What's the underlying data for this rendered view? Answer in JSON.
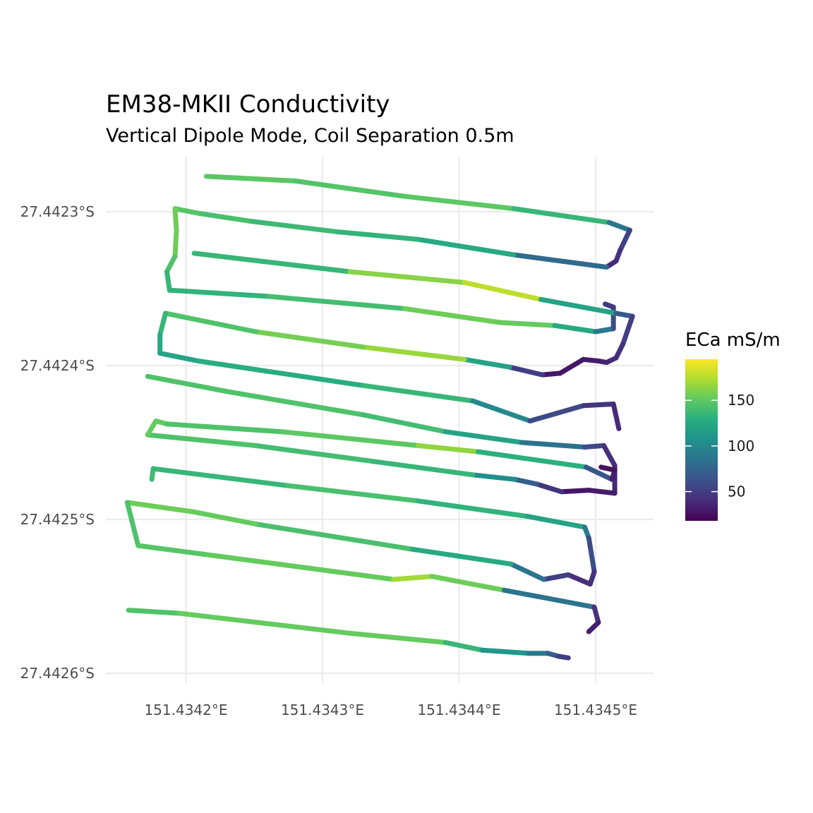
{
  "chart_data": {
    "type": "line",
    "title": "EM38-MKII Conductivity",
    "subtitle": "Vertical Dipole Mode, Coil Separation 0.5m",
    "xlabel": "",
    "ylabel": "",
    "x_ticks": [
      {
        "value": 151.4342,
        "label": "151.4342°E"
      },
      {
        "value": 151.4343,
        "label": "151.4343°E"
      },
      {
        "value": 151.4344,
        "label": "151.4344°E"
      },
      {
        "value": 151.4345,
        "label": "151.4345°E"
      }
    ],
    "y_ticks": [
      {
        "value": -27.4423,
        "label": "27.4423°S"
      },
      {
        "value": -27.4424,
        "label": "27.4424°S"
      },
      {
        "value": -27.4425,
        "label": "27.4425°S"
      },
      {
        "value": -27.4426,
        "label": "27.4426°S"
      }
    ],
    "xlim": [
      151.43414,
      151.43454
    ],
    "ylim": [
      -27.442605,
      -27.442265
    ],
    "grid": true,
    "legend": {
      "title": "ECa mS/m",
      "position": "right",
      "range": [
        18,
        195
      ],
      "ticks": [
        50,
        100,
        150
      ],
      "colormap": "viridis"
    },
    "series": [
      {
        "points": [
          [
            151.434215,
            -27.442277,
            150
          ],
          [
            151.43428,
            -27.44228,
            148
          ],
          [
            151.43436,
            -27.44229,
            145
          ],
          [
            151.43444,
            -27.442298,
            155
          ],
          [
            151.43451,
            -27.442307,
            115
          ],
          [
            151.434525,
            -27.442312,
            60
          ],
          [
            151.434518,
            -27.442325,
            45
          ],
          [
            151.434515,
            -27.442332,
            40
          ],
          [
            151.434508,
            -27.442336,
            38
          ],
          [
            151.43444,
            -27.442328,
            120
          ],
          [
            151.43437,
            -27.442318,
            130
          ],
          [
            151.43431,
            -27.442313,
            135
          ],
          [
            151.434246,
            -27.442306,
            140
          ],
          [
            151.434209,
            -27.442301,
            145
          ],
          [
            151.434192,
            -27.442298,
            150
          ],
          [
            151.434193,
            -27.442312,
            160
          ],
          [
            151.434192,
            -27.442329,
            150
          ],
          [
            151.434186,
            -27.442339,
            140
          ],
          [
            151.434188,
            -27.442351,
            130
          ],
          [
            151.43426,
            -27.442355,
            135
          ],
          [
            151.43436,
            -27.442363,
            145
          ],
          [
            151.43443,
            -27.442372,
            165
          ],
          [
            151.43447,
            -27.442374,
            140
          ],
          [
            151.4345,
            -27.442378,
            110
          ],
          [
            151.434513,
            -27.442376,
            70
          ],
          [
            151.434513,
            -27.442362,
            50
          ],
          [
            151.434507,
            -27.44236,
            45
          ]
        ]
      },
      {
        "points": [
          [
            151.434206,
            -27.442327,
            140
          ],
          [
            151.43432,
            -27.442339,
            130
          ],
          [
            151.434404,
            -27.442346,
            195
          ],
          [
            151.43446,
            -27.442357,
            160
          ],
          [
            151.434515,
            -27.442366,
            80
          ],
          [
            151.434527,
            -27.442368,
            55
          ],
          [
            151.43452,
            -27.442386,
            45
          ],
          [
            151.434515,
            -27.442395,
            40
          ],
          [
            151.434508,
            -27.442398,
            38
          ],
          [
            151.434502,
            -27.442397,
            32
          ],
          [
            151.434491,
            -27.442396,
            30
          ],
          [
            151.434474,
            -27.442405,
            28
          ],
          [
            151.434461,
            -27.442406,
            30
          ],
          [
            151.434437,
            -27.442401,
            70
          ],
          [
            151.434404,
            -27.442396,
            170
          ],
          [
            151.43433,
            -27.442388,
            165
          ],
          [
            151.434251,
            -27.442378,
            150
          ],
          [
            151.434185,
            -27.442366,
            140
          ],
          [
            151.434181,
            -27.44238,
            130
          ],
          [
            151.434181,
            -27.442392,
            120
          ],
          [
            151.434209,
            -27.442397,
            120
          ],
          [
            151.43433,
            -27.442413,
            135
          ],
          [
            151.43441,
            -27.442423,
            135
          ],
          [
            151.434452,
            -27.442436,
            65
          ],
          [
            151.434491,
            -27.442426,
            50
          ],
          [
            151.434513,
            -27.442425,
            40
          ],
          [
            151.434517,
            -27.442441,
            38
          ]
        ]
      },
      {
        "points": [
          [
            151.434172,
            -27.442407,
            140
          ],
          [
            151.434231,
            -27.442417,
            150
          ],
          [
            151.43433,
            -27.442432,
            140
          ],
          [
            151.43439,
            -27.442443,
            140
          ],
          [
            151.434446,
            -27.44245,
            100
          ],
          [
            151.434492,
            -27.442453,
            70
          ],
          [
            151.434506,
            -27.442452,
            45
          ],
          [
            151.434514,
            -27.442465,
            40
          ],
          [
            151.434514,
            -27.442483,
            35
          ],
          [
            151.434495,
            -27.442481,
            28
          ],
          [
            151.434475,
            -27.442482,
            30
          ],
          [
            151.434457,
            -27.442477,
            60
          ],
          [
            151.434441,
            -27.442474,
            80
          ],
          [
            151.43441,
            -27.442471,
            130
          ],
          [
            151.434335,
            -27.442462,
            140
          ],
          [
            151.434251,
            -27.442452,
            140
          ],
          [
            151.434172,
            -27.442445,
            150
          ],
          [
            151.434178,
            -27.442436,
            155
          ],
          [
            151.434186,
            -27.442438,
            150
          ],
          [
            151.43427,
            -27.442443,
            140
          ],
          [
            151.43437,
            -27.442452,
            160
          ],
          [
            151.434414,
            -27.442456,
            170
          ],
          [
            151.434493,
            -27.442466,
            90
          ],
          [
            151.434512,
            -27.442474,
            40
          ],
          [
            151.434514,
            -27.442468,
            28
          ],
          [
            151.434504,
            -27.442466,
            25
          ]
        ]
      },
      {
        "points": [
          [
            151.434175,
            -27.442474,
            160
          ],
          [
            151.434176,
            -27.442467,
            120
          ],
          [
            151.434274,
            -27.442478,
            150
          ],
          [
            151.43437,
            -27.442488,
            135
          ],
          [
            151.43445,
            -27.442498,
            130
          ],
          [
            151.434492,
            -27.442505,
            110
          ],
          [
            151.434495,
            -27.442512,
            70
          ],
          [
            151.434499,
            -27.442534,
            50
          ],
          [
            151.434496,
            -27.442542,
            38
          ],
          [
            151.43448,
            -27.442536,
            45
          ],
          [
            151.434462,
            -27.442539,
            60
          ],
          [
            151.434438,
            -27.442529,
            110
          ],
          [
            151.434363,
            -27.442519,
            140
          ],
          [
            151.434251,
            -27.442503,
            145
          ],
          [
            151.434205,
            -27.442495,
            160
          ],
          [
            151.434157,
            -27.442489,
            150
          ],
          [
            151.434165,
            -27.442517,
            140
          ],
          [
            151.434216,
            -27.442523,
            155
          ],
          [
            151.434352,
            -27.442539,
            150
          ],
          [
            151.43438,
            -27.442537,
            190
          ],
          [
            151.434433,
            -27.442546,
            120
          ],
          [
            151.434499,
            -27.442557,
            50
          ],
          [
            151.434502,
            -27.442567,
            35
          ],
          [
            151.434495,
            -27.442573,
            30
          ]
        ]
      },
      {
        "points": [
          [
            151.434158,
            -27.442559,
            140
          ],
          [
            151.434195,
            -27.442561,
            150
          ],
          [
            151.43432,
            -27.442574,
            155
          ],
          [
            151.43439,
            -27.44258,
            150
          ],
          [
            151.434417,
            -27.442585,
            120
          ],
          [
            151.434451,
            -27.442587,
            100
          ],
          [
            151.434465,
            -27.442587,
            80
          ],
          [
            151.434473,
            -27.442589,
            60
          ],
          [
            151.43448,
            -27.44259,
            40
          ]
        ]
      }
    ]
  }
}
